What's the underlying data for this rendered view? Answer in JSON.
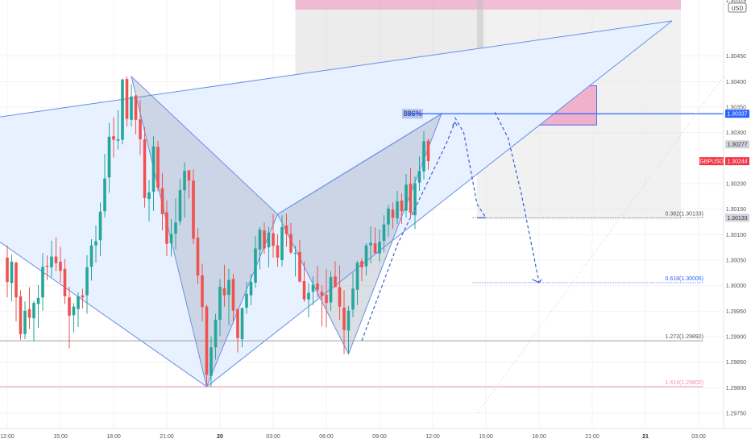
{
  "header": {
    "currency_badge": "USD",
    "top_price_partial": "1.30529"
  },
  "chart_data": {
    "type": "candlestick",
    "symbol": "GBPUSD",
    "y_range": [
      1.2972,
      1.3056
    ],
    "y_ticks": [
      {
        "value": 1.3045,
        "label": "1.30450"
      },
      {
        "value": 1.304,
        "label": "1.30400"
      },
      {
        "value": 1.3035,
        "label": "1.30350"
      },
      {
        "value": 1.303,
        "label": "1.30300"
      },
      {
        "value": 1.302,
        "label": "1.30200"
      },
      {
        "value": 1.3015,
        "label": "1.30150"
      },
      {
        "value": 1.301,
        "label": "1.30100"
      },
      {
        "value": 1.3005,
        "label": "1.30050"
      },
      {
        "value": 1.3,
        "label": "1.30000"
      },
      {
        "value": 1.2995,
        "label": "1.29950"
      },
      {
        "value": 1.299,
        "label": "1.29900"
      },
      {
        "value": 1.2985,
        "label": "1.29850"
      },
      {
        "value": 1.298,
        "label": "1.29800"
      },
      {
        "value": 1.2975,
        "label": "1.29750"
      }
    ],
    "x_ticks": [
      {
        "label": "12:00",
        "idx": 0,
        "bold": false
      },
      {
        "label": "15:00",
        "idx": 12,
        "bold": false
      },
      {
        "label": "18:00",
        "idx": 24,
        "bold": false
      },
      {
        "label": "21:00",
        "idx": 36,
        "bold": false
      },
      {
        "label": "20",
        "idx": 48,
        "bold": true
      },
      {
        "label": "03:00",
        "idx": 60,
        "bold": false
      },
      {
        "label": "06:00",
        "idx": 72,
        "bold": false
      },
      {
        "label": "09:00",
        "idx": 84,
        "bold": false
      },
      {
        "label": "12:00",
        "idx": 96,
        "bold": false
      },
      {
        "label": "15:00",
        "idx": 108,
        "bold": false
      },
      {
        "label": "18:00",
        "idx": 120,
        "bold": false
      },
      {
        "label": "21:00",
        "idx": 132,
        "bold": false
      },
      {
        "label": "21",
        "idx": 144,
        "bold": true
      },
      {
        "label": "03:00",
        "idx": 156,
        "bold": false
      }
    ],
    "price_tags": [
      {
        "value": 1.30337,
        "label": "1.30337",
        "bg": "#2962ff",
        "fg": "#ffffff"
      },
      {
        "value": 1.30277,
        "label": "1.30277",
        "bg": "#d1d4dc",
        "fg": "#333333"
      },
      {
        "value": 1.30244,
        "label": "1.30244",
        "bg": "#f23645",
        "fg": "#ffffff",
        "symbol_label": "GBPUSD"
      },
      {
        "value": 1.30133,
        "label": "1.30133",
        "bg": "#d1d4dc",
        "fg": "#333333"
      }
    ],
    "levels": [
      {
        "label": "0.382(1.30133)",
        "value": 1.30133,
        "x_from_idx": 105,
        "color": "#555555",
        "dash": "1,2"
      },
      {
        "label": "0.618(1.30006)",
        "value": 1.30006,
        "x_from_idx": 105,
        "color": "#2962ff",
        "dash": "1,2"
      },
      {
        "label": "1.272(1.29892)",
        "value": 1.29892,
        "x_from_idx": -1,
        "color": "#9e9e9e",
        "dash": ""
      },
      {
        "label": "1.414(1.29802)",
        "value": 1.29802,
        "x_from_idx": -1,
        "color": "#f48fb1",
        "dash": ""
      }
    ],
    "pattern_points": [
      {
        "idx": -1,
        "price": 1.3033
      },
      {
        "idx": -1,
        "price": 1.3009
      },
      {
        "idx": 28,
        "price": 1.3041
      },
      {
        "idx": 45,
        "price": 1.29802
      },
      {
        "idx": 61,
        "price": 1.3014
      },
      {
        "idx": 77,
        "price": 1.29866
      },
      {
        "idx": 98,
        "price": 1.30337
      }
    ],
    "pattern_ratio_label": "886%",
    "colors": {
      "up": "#26a69a",
      "down": "#ef5350",
      "pattern": "#6a8fe8"
    },
    "candles": [
      {
        "o": 1.30055,
        "h": 1.30079,
        "l": 1.29977,
        "c": 1.30007
      },
      {
        "o": 1.30005,
        "h": 1.30061,
        "l": 1.29969,
        "c": 1.30047
      },
      {
        "o": 1.30045,
        "h": 1.30047,
        "l": 1.2993,
        "c": 1.29977
      },
      {
        "o": 1.29979,
        "h": 1.29991,
        "l": 1.29894,
        "c": 1.29905
      },
      {
        "o": 1.29905,
        "h": 1.29969,
        "l": 1.29895,
        "c": 1.29951
      },
      {
        "o": 1.29954,
        "h": 1.29997,
        "l": 1.29915,
        "c": 1.29937
      },
      {
        "o": 1.29936,
        "h": 1.2997,
        "l": 1.29891,
        "c": 1.29966
      },
      {
        "o": 1.29964,
        "h": 1.30001,
        "l": 1.29917,
        "c": 1.29976
      },
      {
        "o": 1.29977,
        "h": 1.30064,
        "l": 1.29951,
        "c": 1.30037
      },
      {
        "o": 1.30039,
        "h": 1.30059,
        "l": 1.30011,
        "c": 1.30037
      },
      {
        "o": 1.30036,
        "h": 1.30088,
        "l": 1.30017,
        "c": 1.30057
      },
      {
        "o": 1.30057,
        "h": 1.30095,
        "l": 1.30028,
        "c": 1.30044
      },
      {
        "o": 1.30047,
        "h": 1.30076,
        "l": 1.30006,
        "c": 1.30029
      },
      {
        "o": 1.30033,
        "h": 1.30052,
        "l": 1.29964,
        "c": 1.29979
      },
      {
        "o": 1.29977,
        "h": 1.29998,
        "l": 1.29877,
        "c": 1.29941
      },
      {
        "o": 1.29942,
        "h": 1.29966,
        "l": 1.29908,
        "c": 1.29959
      },
      {
        "o": 1.29954,
        "h": 1.29987,
        "l": 1.29919,
        "c": 1.29979
      },
      {
        "o": 1.29981,
        "h": 1.29994,
        "l": 1.29955,
        "c": 1.29977
      },
      {
        "o": 1.29981,
        "h": 1.3006,
        "l": 1.29945,
        "c": 1.30036
      },
      {
        "o": 1.30037,
        "h": 1.30091,
        "l": 1.3001,
        "c": 1.30079
      },
      {
        "o": 1.30079,
        "h": 1.30118,
        "l": 1.30045,
        "c": 1.30087
      },
      {
        "o": 1.30089,
        "h": 1.30163,
        "l": 1.30058,
        "c": 1.30145
      },
      {
        "o": 1.30146,
        "h": 1.30258,
        "l": 1.30134,
        "c": 1.3021
      },
      {
        "o": 1.30212,
        "h": 1.30319,
        "l": 1.30182,
        "c": 1.30292
      },
      {
        "o": 1.30293,
        "h": 1.3033,
        "l": 1.30251,
        "c": 1.30286
      },
      {
        "o": 1.30284,
        "h": 1.30344,
        "l": 1.30267,
        "c": 1.30287
      },
      {
        "o": 1.30286,
        "h": 1.30406,
        "l": 1.30277,
        "c": 1.30404
      },
      {
        "o": 1.30405,
        "h": 1.3041,
        "l": 1.30312,
        "c": 1.30327
      },
      {
        "o": 1.30325,
        "h": 1.30395,
        "l": 1.30312,
        "c": 1.30371
      },
      {
        "o": 1.30373,
        "h": 1.30373,
        "l": 1.30297,
        "c": 1.30325
      },
      {
        "o": 1.30326,
        "h": 1.30364,
        "l": 1.30256,
        "c": 1.30287
      },
      {
        "o": 1.30287,
        "h": 1.30311,
        "l": 1.30153,
        "c": 1.30172
      },
      {
        "o": 1.3017,
        "h": 1.30207,
        "l": 1.30126,
        "c": 1.30183
      },
      {
        "o": 1.30184,
        "h": 1.30293,
        "l": 1.30147,
        "c": 1.30273
      },
      {
        "o": 1.30272,
        "h": 1.30284,
        "l": 1.30185,
        "c": 1.30192
      },
      {
        "o": 1.30191,
        "h": 1.30221,
        "l": 1.30108,
        "c": 1.3014
      },
      {
        "o": 1.30144,
        "h": 1.30167,
        "l": 1.30058,
        "c": 1.30082
      },
      {
        "o": 1.30083,
        "h": 1.30131,
        "l": 1.30057,
        "c": 1.30101
      },
      {
        "o": 1.30102,
        "h": 1.30171,
        "l": 1.30071,
        "c": 1.30124
      },
      {
        "o": 1.30126,
        "h": 1.30209,
        "l": 1.30119,
        "c": 1.30187
      },
      {
        "o": 1.30187,
        "h": 1.30242,
        "l": 1.30133,
        "c": 1.30225
      },
      {
        "o": 1.30226,
        "h": 1.30227,
        "l": 1.30171,
        "c": 1.30206
      },
      {
        "o": 1.30206,
        "h": 1.30228,
        "l": 1.30082,
        "c": 1.30092
      },
      {
        "o": 1.30094,
        "h": 1.30113,
        "l": 1.30003,
        "c": 1.3002
      },
      {
        "o": 1.3002,
        "h": 1.30043,
        "l": 1.2993,
        "c": 1.29958
      },
      {
        "o": 1.29959,
        "h": 1.29963,
        "l": 1.29802,
        "c": 1.29825
      },
      {
        "o": 1.29823,
        "h": 1.29901,
        "l": 1.29802,
        "c": 1.29879
      },
      {
        "o": 1.29879,
        "h": 1.29945,
        "l": 1.29855,
        "c": 1.29933
      },
      {
        "o": 1.29933,
        "h": 1.30013,
        "l": 1.29901,
        "c": 1.29998
      },
      {
        "o": 1.29995,
        "h": 1.30041,
        "l": 1.29959,
        "c": 1.29981
      },
      {
        "o": 1.29982,
        "h": 1.30033,
        "l": 1.29922,
        "c": 1.30011
      },
      {
        "o": 1.30013,
        "h": 1.30023,
        "l": 1.29929,
        "c": 1.29951
      },
      {
        "o": 1.29954,
        "h": 1.29955,
        "l": 1.29869,
        "c": 1.29897
      },
      {
        "o": 1.29895,
        "h": 1.29957,
        "l": 1.29879,
        "c": 1.29956
      },
      {
        "o": 1.29957,
        "h": 1.30007,
        "l": 1.29945,
        "c": 1.29984
      },
      {
        "o": 1.29981,
        "h": 1.30023,
        "l": 1.29962,
        "c": 1.30007
      },
      {
        "o": 1.30006,
        "h": 1.30098,
        "l": 1.29996,
        "c": 1.30073
      },
      {
        "o": 1.30071,
        "h": 1.30115,
        "l": 1.30032,
        "c": 1.3011
      },
      {
        "o": 1.30108,
        "h": 1.30124,
        "l": 1.30062,
        "c": 1.30073
      },
      {
        "o": 1.30075,
        "h": 1.30115,
        "l": 1.30036,
        "c": 1.30104
      },
      {
        "o": 1.30103,
        "h": 1.3014,
        "l": 1.30055,
        "c": 1.30078
      },
      {
        "o": 1.30079,
        "h": 1.30101,
        "l": 1.30037,
        "c": 1.30055
      },
      {
        "o": 1.3005,
        "h": 1.30138,
        "l": 1.30038,
        "c": 1.30115
      },
      {
        "o": 1.30118,
        "h": 1.30141,
        "l": 1.30076,
        "c": 1.30101
      },
      {
        "o": 1.30101,
        "h": 1.30123,
        "l": 1.30062,
        "c": 1.30065
      },
      {
        "o": 1.30063,
        "h": 1.30078,
        "l": 1.30018,
        "c": 1.30064
      },
      {
        "o": 1.30066,
        "h": 1.3009,
        "l": 1.30006,
        "c": 1.30008
      },
      {
        "o": 1.30009,
        "h": 1.30047,
        "l": 1.29968,
        "c": 1.29973
      },
      {
        "o": 1.29973,
        "h": 1.30005,
        "l": 1.29938,
        "c": 1.29986
      },
      {
        "o": 1.29988,
        "h": 1.30018,
        "l": 1.29962,
        "c": 1.30002
      },
      {
        "o": 1.30004,
        "h": 1.30039,
        "l": 1.29976,
        "c": 1.29992
      },
      {
        "o": 1.29988,
        "h": 1.30001,
        "l": 1.2992,
        "c": 1.2998
      },
      {
        "o": 1.29982,
        "h": 1.30032,
        "l": 1.29918,
        "c": 1.29966
      },
      {
        "o": 1.29967,
        "h": 1.30028,
        "l": 1.29951,
        "c": 1.30017
      },
      {
        "o": 1.30018,
        "h": 1.30048,
        "l": 1.30002,
        "c": 1.29997
      },
      {
        "o": 1.29997,
        "h": 1.3004,
        "l": 1.29933,
        "c": 1.29959
      },
      {
        "o": 1.29957,
        "h": 1.29991,
        "l": 1.29866,
        "c": 1.29913
      },
      {
        "o": 1.29912,
        "h": 1.2996,
        "l": 1.29866,
        "c": 1.29951
      },
      {
        "o": 1.29953,
        "h": 1.30026,
        "l": 1.29938,
        "c": 1.29994
      },
      {
        "o": 1.29992,
        "h": 1.30049,
        "l": 1.29962,
        "c": 1.30045
      },
      {
        "o": 1.30048,
        "h": 1.30054,
        "l": 1.30009,
        "c": 1.30036
      },
      {
        "o": 1.30038,
        "h": 1.30083,
        "l": 1.3002,
        "c": 1.30079
      },
      {
        "o": 1.30079,
        "h": 1.30116,
        "l": 1.30044,
        "c": 1.30084
      },
      {
        "o": 1.30083,
        "h": 1.30114,
        "l": 1.30062,
        "c": 1.30064
      },
      {
        "o": 1.30063,
        "h": 1.3011,
        "l": 1.30047,
        "c": 1.30086
      },
      {
        "o": 1.30088,
        "h": 1.30138,
        "l": 1.30065,
        "c": 1.3012
      },
      {
        "o": 1.3012,
        "h": 1.30159,
        "l": 1.30096,
        "c": 1.30151
      },
      {
        "o": 1.30149,
        "h": 1.30163,
        "l": 1.30112,
        "c": 1.30133
      },
      {
        "o": 1.30132,
        "h": 1.30186,
        "l": 1.30121,
        "c": 1.30165
      },
      {
        "o": 1.30167,
        "h": 1.30181,
        "l": 1.30121,
        "c": 1.30146
      },
      {
        "o": 1.30147,
        "h": 1.30219,
        "l": 1.30133,
        "c": 1.30198
      },
      {
        "o": 1.302,
        "h": 1.30231,
        "l": 1.30134,
        "c": 1.30143
      },
      {
        "o": 1.30138,
        "h": 1.30214,
        "l": 1.30111,
        "c": 1.30201
      },
      {
        "o": 1.30202,
        "h": 1.30253,
        "l": 1.30186,
        "c": 1.30225
      },
      {
        "o": 1.30224,
        "h": 1.30303,
        "l": 1.30208,
        "c": 1.30283
      },
      {
        "o": 1.30284,
        "h": 1.30288,
        "l": 1.30227,
        "c": 1.30244
      }
    ]
  }
}
